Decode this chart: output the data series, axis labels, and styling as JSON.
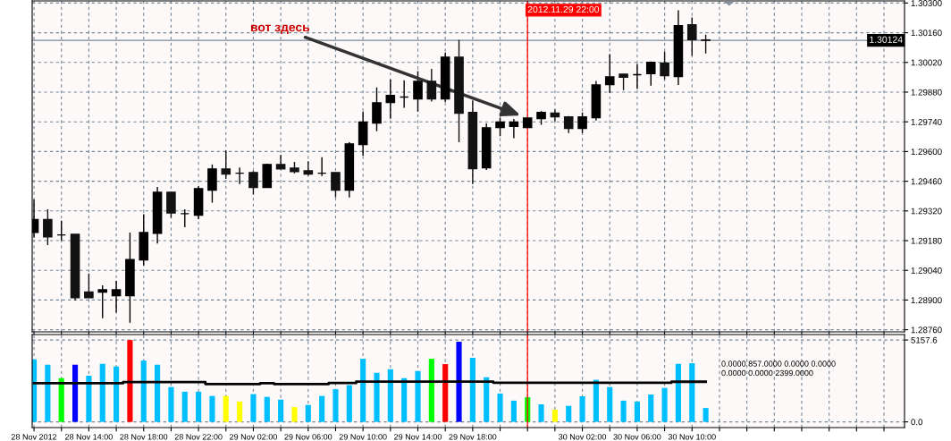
{
  "chart_data": [
    {
      "type": "candlestick",
      "colors": [
        "#000000",
        "#121212",
        "#000000",
        "#121212",
        "#121212",
        "#000000",
        "#000000",
        "#000000",
        "#000000",
        "#000000",
        "#121212",
        "#000000",
        "#000000",
        "#000000",
        "#121212",
        "#000000",
        "#121212",
        "#000000",
        "#121212",
        "#121212",
        "#121212",
        "#000000",
        "#121212",
        "#000000",
        "#000000",
        "#000000",
        "#000000",
        "#000000",
        "#000000",
        "#121212",
        "#000000",
        "#121212",
        "#121212",
        "#000000",
        "#000000",
        "#000000",
        "#000000",
        "#000000",
        "#121212",
        "#121212",
        "#000000",
        "#000000",
        "#000000",
        "#121212",
        "#000000",
        "#000000",
        "#121212",
        "#000000",
        "#121212",
        "#121212"
      ],
      "x": [
        "2012-11-28T10:00",
        "2012-11-28T11:00",
        "2012-11-28T12:00",
        "2012-11-28T13:00",
        "2012-11-28T14:00",
        "2012-11-28T15:00",
        "2012-11-28T16:00",
        "2012-11-28T17:00",
        "2012-11-28T18:00",
        "2012-11-28T19:00",
        "2012-11-28T20:00",
        "2012-11-28T21:00",
        "2012-11-28T22:00",
        "2012-11-28T23:00",
        "2012-11-29T00:00",
        "2012-11-29T01:00",
        "2012-11-29T02:00",
        "2012-11-29T03:00",
        "2012-11-29T04:00",
        "2012-11-29T05:00",
        "2012-11-29T06:00",
        "2012-11-29T07:00",
        "2012-11-29T08:00",
        "2012-11-29T09:00",
        "2012-11-29T10:00",
        "2012-11-29T11:00",
        "2012-11-29T12:00",
        "2012-11-29T13:00",
        "2012-11-29T14:00",
        "2012-11-29T15:00",
        "2012-11-29T16:00",
        "2012-11-29T17:00",
        "2012-11-29T18:00",
        "2012-11-29T19:00",
        "2012-11-29T20:00",
        "2012-11-29T21:00",
        "2012-11-29T22:00",
        "2012-11-29T23:00",
        "2012-11-30T00:00",
        "2012-11-30T01:00",
        "2012-11-30T02:00",
        "2012-11-30T03:00",
        "2012-11-30T04:00",
        "2012-11-30T05:00",
        "2012-11-30T06:00",
        "2012-11-30T07:00",
        "2012-11-30T08:00",
        "2012-11-30T09:00",
        "2012-11-30T10:00",
        "2012-11-30T11:00"
      ],
      "ohlc": [
        [
          1.29219,
          1.29374,
          1.29194,
          1.29279
        ],
        [
          1.29279,
          1.29328,
          1.29159,
          1.29198
        ],
        [
          1.29207,
          1.29274,
          1.2918,
          1.29207
        ],
        [
          1.2921,
          1.2921,
          1.28899,
          1.28911
        ],
        [
          1.28938,
          1.29025,
          1.28911,
          1.28911
        ],
        [
          1.28937,
          1.28969,
          1.28814,
          1.28948
        ],
        [
          1.2892,
          1.2899,
          1.28842,
          1.28948
        ],
        [
          1.2892,
          1.29218,
          1.28793,
          1.29091
        ],
        [
          1.29089,
          1.29304,
          1.29063,
          1.29218
        ],
        [
          1.29215,
          1.29433,
          1.29166,
          1.29408
        ],
        [
          1.29408,
          1.29408,
          1.29288,
          1.2931
        ],
        [
          1.29307,
          1.29328,
          1.29243,
          1.29307
        ],
        [
          1.293,
          1.29436,
          1.29281,
          1.29425
        ],
        [
          1.29418,
          1.29539,
          1.29359,
          1.29518
        ],
        [
          1.29518,
          1.29605,
          1.29471,
          1.29494
        ],
        [
          1.29498,
          1.29525,
          1.29447,
          1.29498
        ],
        [
          1.29501,
          1.29508,
          1.29398,
          1.29431
        ],
        [
          1.29431,
          1.29543,
          1.29431,
          1.29539
        ],
        [
          1.29539,
          1.29585,
          1.29518,
          1.29518
        ],
        [
          1.29522,
          1.29551,
          1.29497,
          1.29506
        ],
        [
          1.29509,
          1.29554,
          1.29487,
          1.29494
        ],
        [
          1.29498,
          1.29573,
          1.29485,
          1.29498
        ],
        [
          1.29501,
          1.29501,
          1.29384,
          1.29418
        ],
        [
          1.29418,
          1.29644,
          1.29384,
          1.29636
        ],
        [
          1.29633,
          1.29788,
          1.29581,
          1.29739
        ],
        [
          1.29734,
          1.29902,
          1.29696,
          1.2983
        ],
        [
          1.29831,
          1.2994,
          1.29754,
          1.29864
        ],
        [
          1.29857,
          1.29936,
          1.29806,
          1.29857
        ],
        [
          1.29848,
          1.29979,
          1.29788,
          1.29931
        ],
        [
          1.29931,
          1.2999,
          1.29836,
          1.29848
        ],
        [
          1.29848,
          1.30066,
          1.29834,
          1.30045
        ],
        [
          1.30045,
          1.30126,
          1.29644,
          1.29781
        ],
        [
          1.29784,
          1.29841,
          1.29447,
          1.29519
        ],
        [
          1.29523,
          1.29732,
          1.29513,
          1.29712
        ],
        [
          1.29713,
          1.2976,
          1.29672,
          1.29739
        ],
        [
          1.29718,
          1.29753,
          1.29663,
          1.29739
        ],
        [
          1.29713,
          1.29758,
          1.29713,
          1.29758
        ],
        [
          1.29755,
          1.29791,
          1.29726,
          1.29784
        ],
        [
          1.29781,
          1.29798,
          1.29743,
          1.29764
        ],
        [
          1.29763,
          1.29767,
          1.29687,
          1.29709
        ],
        [
          1.29709,
          1.29784,
          1.29687,
          1.29763
        ],
        [
          1.2976,
          1.29933,
          1.29746,
          1.29914
        ],
        [
          1.29916,
          1.30059,
          1.29877,
          1.29952
        ],
        [
          1.29965,
          1.29965,
          1.29889,
          1.2995
        ],
        [
          1.29962,
          1.30013,
          1.29895,
          1.29962
        ],
        [
          1.29967,
          1.30024,
          1.2991,
          1.3002
        ],
        [
          1.30017,
          1.30071,
          1.2994,
          1.29958
        ],
        [
          1.29954,
          1.30266,
          1.29914,
          1.30193
        ],
        [
          1.30197,
          1.30232,
          1.30052,
          1.30127
        ],
        [
          1.30126,
          1.30151,
          1.30062,
          1.30124
        ]
      ],
      "xlim": [
        "2012-11-28T09:52",
        "2012-12-01T01:30"
      ],
      "xticks": [
        {
          "value": "2012-11-28T10:00",
          "label": null
        },
        {
          "value": "2012-11-28T12:00",
          "label": null
        },
        {
          "value": "2012-11-28T14:00",
          "label": null
        },
        {
          "value": "2012-11-28T16:00",
          "label": null
        },
        {
          "value": "2012-11-28T18:00",
          "label": null
        },
        {
          "value": "2012-11-28T20:00",
          "label": null
        },
        {
          "value": "2012-11-28T22:00",
          "label": null
        },
        {
          "value": "2012-11-29T00:00",
          "label": null
        },
        {
          "value": "2012-11-29T02:00",
          "label": null
        },
        {
          "value": "2012-11-29T04:00",
          "label": null
        },
        {
          "value": "2012-11-29T06:00",
          "label": null
        },
        {
          "value": "2012-11-29T08:00",
          "label": null
        },
        {
          "value": "2012-11-29T10:00",
          "label": null
        },
        {
          "value": "2012-11-29T12:00",
          "label": null
        },
        {
          "value": "2012-11-29T14:00",
          "label": null
        },
        {
          "value": "2012-11-29T16:00",
          "label": null
        },
        {
          "value": "2012-11-29T18:00",
          "label": null
        },
        {
          "value": "2012-11-29T20:00",
          "label": null
        },
        {
          "value": "2012-11-29T22:00",
          "label": null
        },
        {
          "value": "2012-11-30T00:00",
          "label": null
        },
        {
          "value": "2012-11-30T02:00",
          "label": null
        },
        {
          "value": "2012-11-30T04:00",
          "label": null
        },
        {
          "value": "2012-11-30T06:00",
          "label": null
        },
        {
          "value": "2012-11-30T08:00",
          "label": null
        },
        {
          "value": "2012-11-30T10:00",
          "label": null
        },
        {
          "value": "2012-11-30T12:00",
          "label": null
        },
        {
          "value": "2012-11-30T14:00",
          "label": null
        },
        {
          "value": "2012-11-30T16:00",
          "label": null
        },
        {
          "value": "2012-11-30T18:00",
          "label": null
        },
        {
          "value": "2012-11-30T20:00",
          "label": null
        },
        {
          "value": "2012-11-30T22:00",
          "label": null
        },
        {
          "value": "2012-12-01T00:00",
          "label": null
        }
      ],
      "ylim": [
        1.2875,
        1.3031
      ],
      "yticks": [
        {
          "value": 1.2876,
          "label": "1.28760"
        },
        {
          "value": 1.289,
          "label": "1.28900"
        },
        {
          "value": 1.2904,
          "label": "1.29040"
        },
        {
          "value": 1.2918,
          "label": "1.29180"
        },
        {
          "value": 1.2932,
          "label": "1.29320"
        },
        {
          "value": 1.2946,
          "label": "1.29460"
        },
        {
          "value": 1.296,
          "label": "1.29600"
        },
        {
          "value": 1.2974,
          "label": "1.29740"
        },
        {
          "value": 1.2988,
          "label": "1.29880"
        },
        {
          "value": 1.3002,
          "label": "1.30020"
        },
        {
          "value": 1.3016,
          "label": "1.30160"
        },
        {
          "value": 1.303,
          "label": "1.30300"
        }
      ],
      "tick_labels": "y",
      "grid": true,
      "ref_lines": [
        {
          "axis": "y",
          "value": 1.30124,
          "label": "1.30124",
          "color": "#778899"
        },
        {
          "axis": "x",
          "value": "2012-11-29T22:00",
          "label": "2012.11.29 22:00",
          "color": "#ff0000"
        }
      ],
      "annotations": [
        {
          "text": "вот здесь",
          "x": "2012-11-29T21:30",
          "y": 1.2977
        }
      ]
    },
    {
      "type": "bar",
      "title": "0.0000 857.0000 0.0000 0.0000 0.0000 0.0000 2399.0000",
      "x": [
        "2012-11-28T10:00",
        "2012-11-28T11:00",
        "2012-11-28T12:00",
        "2012-11-28T13:00",
        "2012-11-28T14:00",
        "2012-11-28T15:00",
        "2012-11-28T16:00",
        "2012-11-28T17:00",
        "2012-11-28T18:00",
        "2012-11-28T19:00",
        "2012-11-28T20:00",
        "2012-11-28T21:00",
        "2012-11-28T22:00",
        "2012-11-28T23:00",
        "2012-11-29T00:00",
        "2012-11-29T01:00",
        "2012-11-29T02:00",
        "2012-11-29T03:00",
        "2012-11-29T04:00",
        "2012-11-29T05:00",
        "2012-11-29T06:00",
        "2012-11-29T07:00",
        "2012-11-29T08:00",
        "2012-11-29T09:00",
        "2012-11-29T10:00",
        "2012-11-29T11:00",
        "2012-11-29T12:00",
        "2012-11-29T13:00",
        "2012-11-29T14:00",
        "2012-11-29T15:00",
        "2012-11-29T16:00",
        "2012-11-29T17:00",
        "2012-11-29T18:00",
        "2012-11-29T19:00",
        "2012-11-29T20:00",
        "2012-11-29T21:00",
        "2012-11-29T22:00",
        "2012-11-29T23:00",
        "2012-11-30T00:00",
        "2012-11-30T01:00",
        "2012-11-30T02:00",
        "2012-11-30T03:00",
        "2012-11-30T04:00",
        "2012-11-30T05:00",
        "2012-11-30T06:00",
        "2012-11-30T07:00",
        "2012-11-30T08:00",
        "2012-11-30T09:00",
        "2012-11-30T10:00",
        "2012-11-30T11:00"
      ],
      "series": [
        {
          "type": "bar",
          "values": [
            3937,
            3600,
            2752,
            3600,
            2905,
            3655,
            3486,
            5157.6,
            3863,
            3600,
            2194,
            1900,
            1900,
            1630,
            1630,
            1280,
            1748,
            1574,
            1399,
            930,
            1066,
            1630,
            2059,
            2312,
            3976,
            3091,
            3316,
            2752,
            3204,
            3976,
            3638,
            5048,
            4033,
            2809,
            1788,
            1337,
            1551,
            1105,
            773,
            1010,
            1613,
            2650,
            2194,
            1337,
            1280,
            1726,
            2137,
            3655,
            3694,
            874
          ],
          "colors": [
            "#00bfff",
            "#00bfff",
            "#00ff00",
            "#0000ff",
            "#00bfff",
            "#00bfff",
            "#00bfff",
            "#ff0000",
            "#00bfff",
            "#00bfff",
            "#00bfff",
            "#00bfff",
            "#00bfff",
            "#00bfff",
            "#ffff00",
            "#ffff00",
            "#00bfff",
            "#00bfff",
            "#00bfff",
            "#ffff00",
            "#00bfff",
            "#00bfff",
            "#00bfff",
            "#00bfff",
            "#00bfff",
            "#00bfff",
            "#00bfff",
            "#00bfff",
            "#00bfff",
            "#00ff00",
            "#ff0000",
            "#0000ff",
            "#00bfff",
            "#00bfff",
            "#00bfff",
            "#00bfff",
            "#00ff00",
            "#00bfff",
            "#ffff00",
            "#00bfff",
            "#00bfff",
            "#00bfff",
            "#00bfff",
            "#00bfff",
            "#00bfff",
            "#00bfff",
            "#00bfff",
            "#00bfff",
            "#00bfff",
            "#00bfff"
          ]
        },
        {
          "type": "step",
          "color": "#000000",
          "values": [
            2430,
            2430,
            2430,
            2430,
            2430,
            2430,
            2430,
            2510,
            2510,
            2510,
            2510,
            2510,
            2510,
            2386,
            2386,
            2386,
            2386,
            2430,
            2386,
            2386,
            2386,
            2386,
            2450,
            2450,
            2530,
            2530,
            2530,
            2530,
            2530,
            2530,
            2530,
            2530,
            2530,
            2530,
            2465,
            2465,
            2465,
            2465,
            2465,
            2465,
            2465,
            2465,
            2465,
            2465,
            2465,
            2465,
            2465,
            2527,
            2527,
            2527
          ]
        }
      ],
      "xlim": [
        "2012-11-28T09:52",
        "2012-12-01T01:30"
      ],
      "xticks": [
        {
          "value": "2012-11-28T10:00",
          "label": "28 Nov 2012"
        },
        {
          "value": "2012-11-28T12:00",
          "label": null
        },
        {
          "value": "2012-11-28T14:00",
          "label": "28 Nov 14:00"
        },
        {
          "value": "2012-11-28T16:00",
          "label": null
        },
        {
          "value": "2012-11-28T18:00",
          "label": "28 Nov 18:00"
        },
        {
          "value": "2012-11-28T20:00",
          "label": null
        },
        {
          "value": "2012-11-28T22:00",
          "label": "28 Nov 22:00"
        },
        {
          "value": "2012-11-29T00:00",
          "label": null
        },
        {
          "value": "2012-11-29T02:00",
          "label": "29 Nov 02:00"
        },
        {
          "value": "2012-11-29T04:00",
          "label": null
        },
        {
          "value": "2012-11-29T06:00",
          "label": "29 Nov 06:00"
        },
        {
          "value": "2012-11-29T08:00",
          "label": null
        },
        {
          "value": "2012-11-29T10:00",
          "label": "29 Nov 10:00"
        },
        {
          "value": "2012-11-29T12:00",
          "label": null
        },
        {
          "value": "2012-11-29T14:00",
          "label": "29 Nov 14:00"
        },
        {
          "value": "2012-11-29T16:00",
          "label": null
        },
        {
          "value": "2012-11-29T18:00",
          "label": "29 Nov 18:00"
        },
        {
          "value": "2012-11-29T20:00",
          "label": null
        },
        {
          "value": "2012-11-29T22:00",
          "label": null
        },
        {
          "value": "2012-11-30T00:00",
          "label": null
        },
        {
          "value": "2012-11-30T02:00",
          "label": "30 Nov 02:00"
        },
        {
          "value": "2012-11-30T04:00",
          "label": null
        },
        {
          "value": "2012-11-30T06:00",
          "label": "30 Nov 06:00"
        },
        {
          "value": "2012-11-30T08:00",
          "label": null
        },
        {
          "value": "2012-11-30T10:00",
          "label": "30 Nov 10:00"
        },
        {
          "value": "2012-11-30T12:00",
          "label": null
        },
        {
          "value": "2012-11-30T14:00",
          "label": null
        },
        {
          "value": "2012-11-30T16:00",
          "label": null
        },
        {
          "value": "2012-11-30T18:00",
          "label": null
        },
        {
          "value": "2012-11-30T20:00",
          "label": null
        },
        {
          "value": "2012-11-30T22:00",
          "label": null
        },
        {
          "value": "2012-12-01T00:00",
          "label": null
        }
      ],
      "ylim": [
        -360,
        5500
      ],
      "yticks": [
        {
          "value": 0,
          "label": "0.0"
        },
        5157.6
      ],
      "grid": true,
      "ref_lines": [
        {
          "axis": "x",
          "value": "2012-11-29T22:00",
          "color": "#ff0000"
        }
      ]
    }
  ]
}
